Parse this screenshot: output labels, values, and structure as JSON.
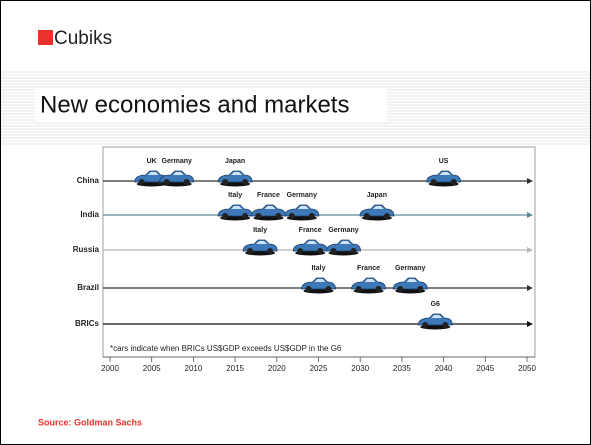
{
  "header": {
    "logo": "Cubiks",
    "title": "New economies and markets"
  },
  "chart_data": {
    "type": "timeline",
    "series": [
      {
        "name": "China",
        "color": "#333333",
        "labels": [
          "UK",
          "Germany",
          "Japan",
          "US"
        ],
        "x": [
          2005,
          2008,
          2015,
          2040
        ]
      },
      {
        "name": "India",
        "color": "#5b8a9a",
        "labels": [
          "Italy",
          "France",
          "Germany",
          "Japan"
        ],
        "x": [
          2015,
          2019,
          2023,
          2032
        ]
      },
      {
        "name": "Russia",
        "color": "#b8b8b8",
        "labels": [
          "Italy",
          "France",
          "Germany"
        ],
        "x": [
          2018,
          2024,
          2028
        ]
      },
      {
        "name": "Brazil",
        "color": "#333333",
        "labels": [
          "Italy",
          "France",
          "Germany"
        ],
        "x": [
          2025,
          2031,
          2036
        ]
      },
      {
        "name": "BRICs",
        "color": "#111111",
        "labels": [
          "G6"
        ],
        "x": [
          2039
        ]
      }
    ],
    "note": "*cars indicate when BRICs US$GDP exceeds US$GDP in the G6",
    "xlim": [
      2000,
      2050
    ],
    "xticks": [
      2000,
      2005,
      2010,
      2015,
      2020,
      2025,
      2030,
      2035,
      2040,
      2045,
      2050
    ]
  },
  "footer": {
    "source": "Source: Goldman Sachs"
  }
}
